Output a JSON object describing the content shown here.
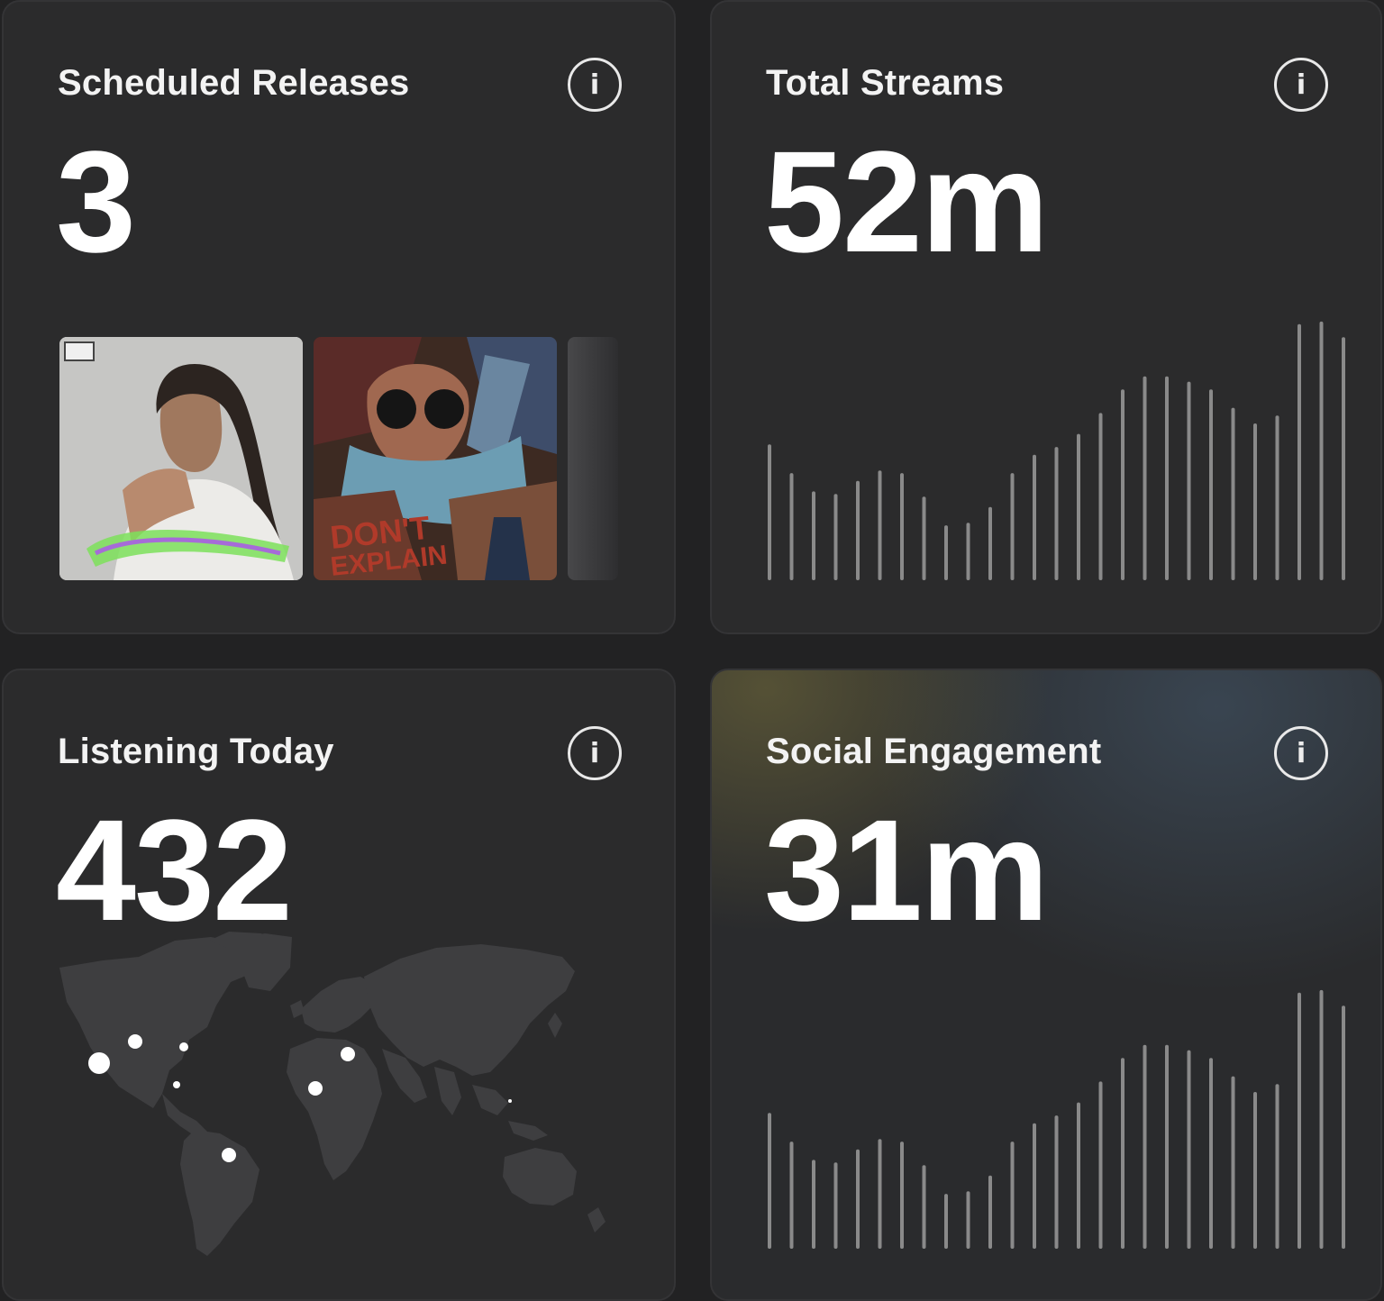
{
  "cards": {
    "releases": {
      "title": "Scheduled Releases",
      "value": "3"
    },
    "streams": {
      "title": "Total Streams",
      "value": "52m"
    },
    "listening": {
      "title": "Listening Today",
      "value": "432"
    },
    "social": {
      "title": "Social Engagement",
      "value": "31m"
    }
  },
  "info_icon": {
    "glyph": "i",
    "name": "info-icon"
  },
  "album_covers": [
    {
      "name": "album-cover-portrait"
    },
    {
      "name": "album-cover-comic"
    },
    {
      "name": "album-cover-partial"
    }
  ],
  "streams_bars": [
    0.52,
    0.41,
    0.34,
    0.33,
    0.38,
    0.42,
    0.41,
    0.32,
    0.21,
    0.22,
    0.28,
    0.41,
    0.48,
    0.51,
    0.56,
    0.64,
    0.73,
    0.78,
    0.78,
    0.76,
    0.73,
    0.66,
    0.6,
    0.63,
    0.98,
    0.99,
    0.93
  ],
  "social_bars": [
    0.52,
    0.41,
    0.34,
    0.33,
    0.38,
    0.42,
    0.41,
    0.32,
    0.21,
    0.22,
    0.28,
    0.41,
    0.48,
    0.51,
    0.56,
    0.64,
    0.73,
    0.78,
    0.78,
    0.76,
    0.73,
    0.66,
    0.6,
    0.63,
    0.98,
    0.99,
    0.93
  ],
  "colors": {
    "background": "#222223",
    "card": "#2b2b2c",
    "bar": "#8a8a8a",
    "map_land": "#424244",
    "dot": "#ffffff"
  }
}
